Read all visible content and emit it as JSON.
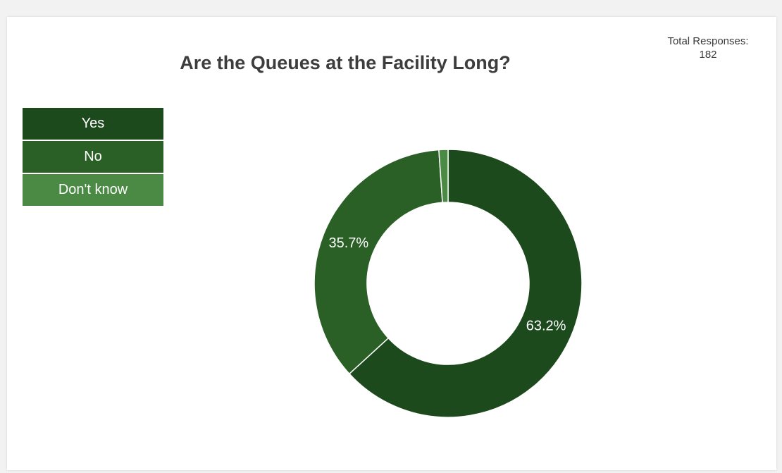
{
  "chart_data": {
    "type": "pie",
    "title": "Are the Queues at the Facility Long?",
    "total_label": "Total Responses:",
    "total_value": "182",
    "donut": true,
    "legend_position": "top-left",
    "categories": [
      "Yes",
      "No",
      "Don't know"
    ],
    "values": [
      63.2,
      35.7,
      1.1
    ],
    "labels": [
      "63.2%",
      "35.7%",
      ""
    ],
    "colors": [
      "#1c4a1c",
      "#2a5f26",
      "#4b8a44"
    ]
  }
}
